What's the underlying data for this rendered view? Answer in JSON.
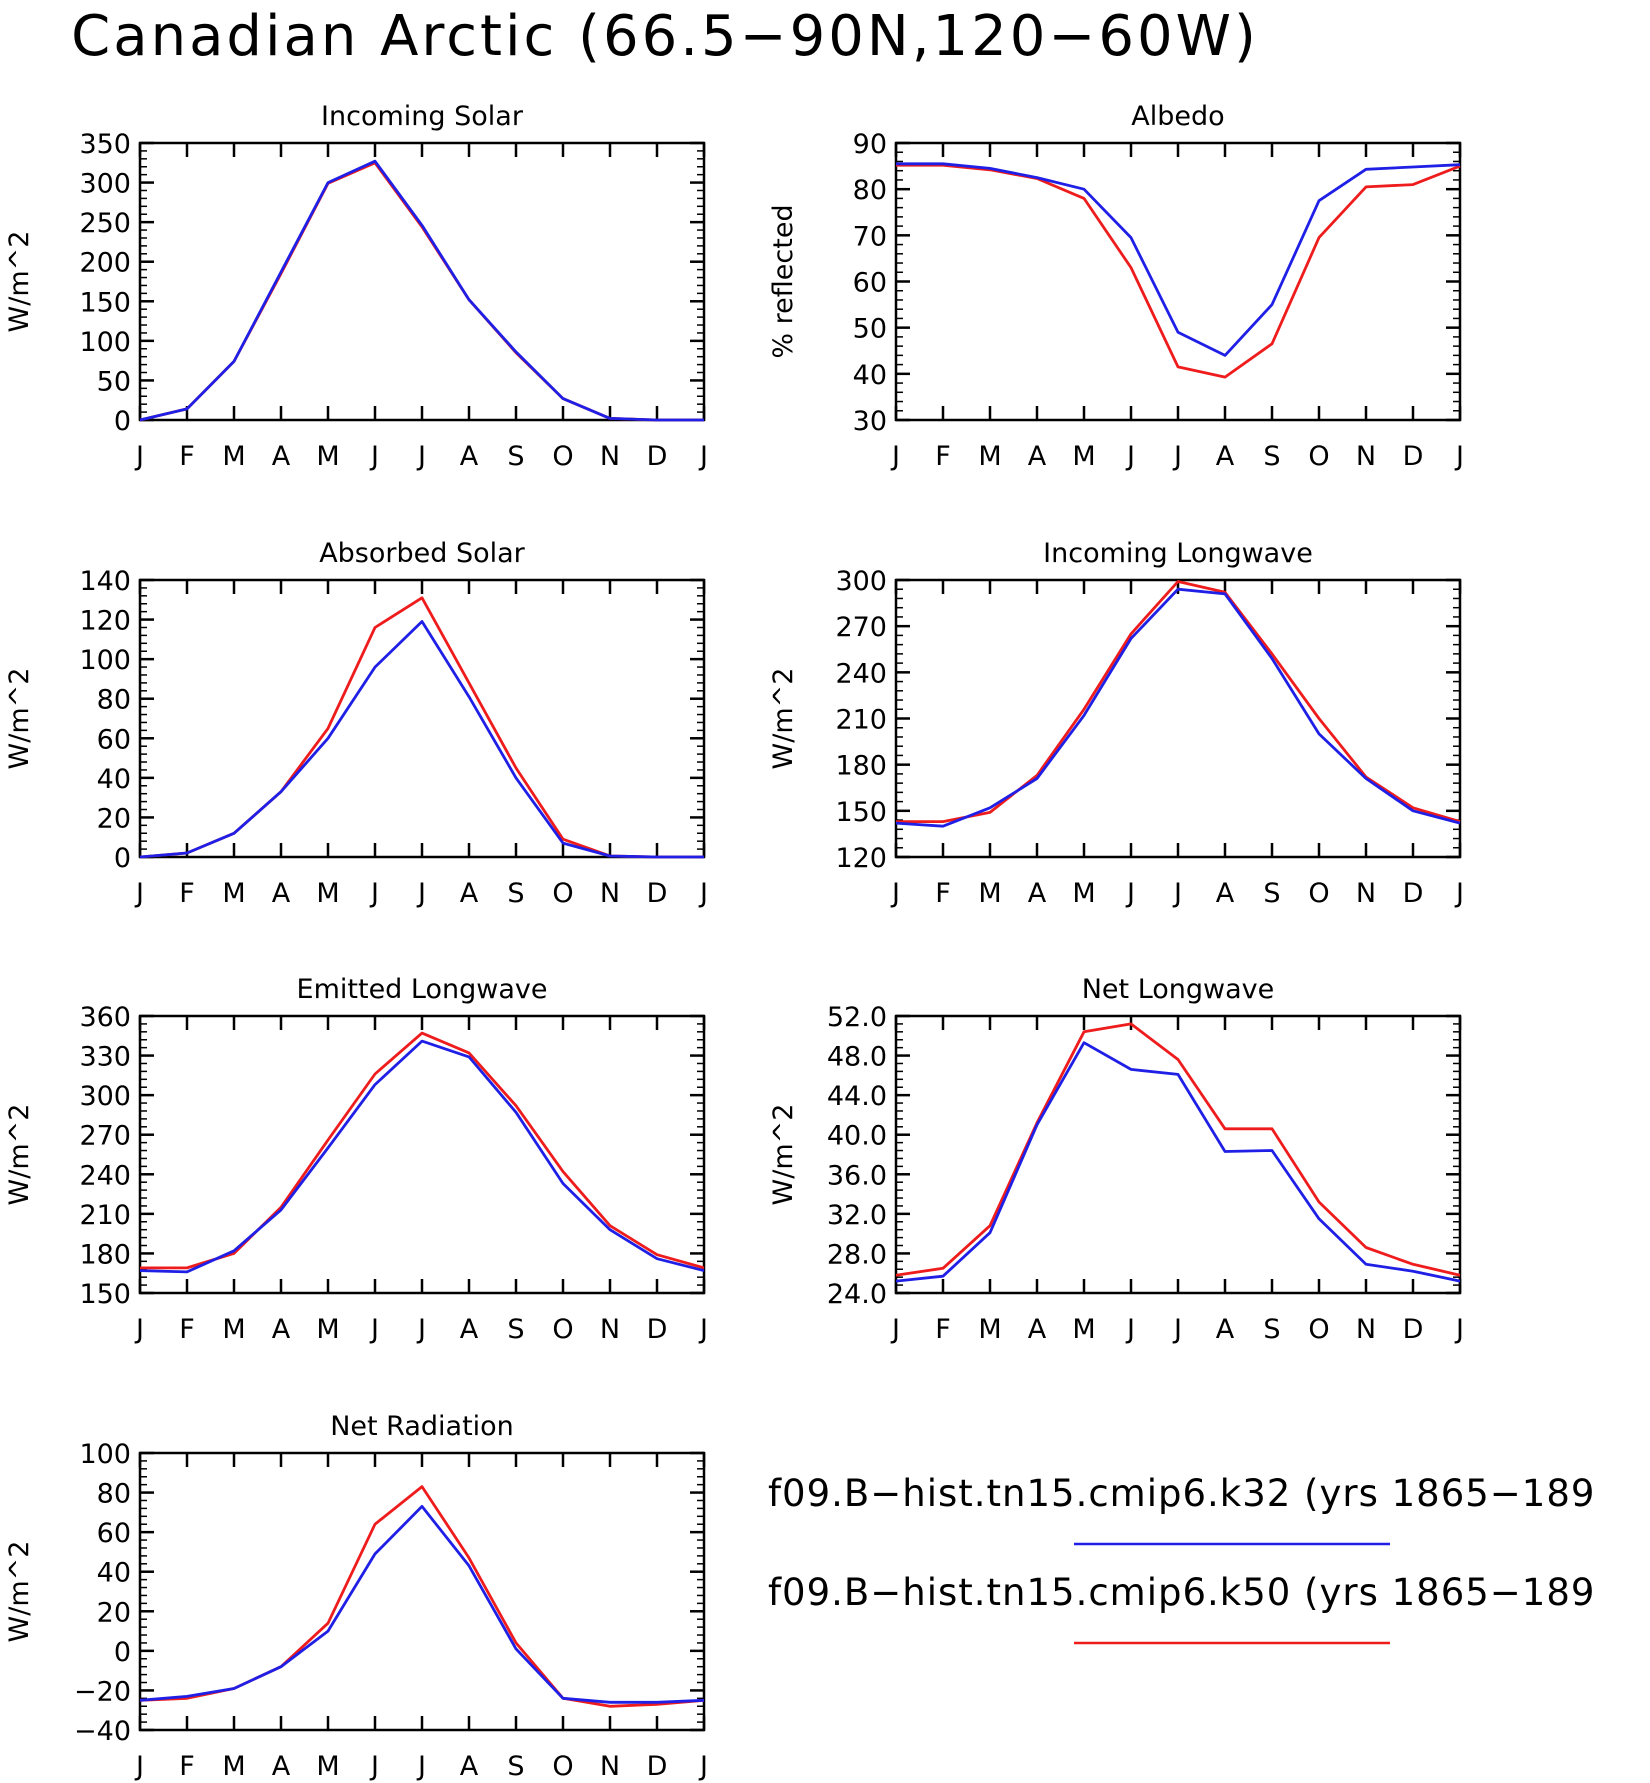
{
  "title": "Canadian Arctic (66.5−90N,120−60W)",
  "month_labels": [
    "J",
    "F",
    "M",
    "A",
    "M",
    "J",
    "J",
    "A",
    "S",
    "O",
    "N",
    "D",
    "J"
  ],
  "legend": [
    {
      "label": "f09.B−hist.tn15.cmip6.k32 (yrs 1865−189",
      "color": "#1f1fe6"
    },
    {
      "label": "f09.B−hist.tn15.cmip6.k50 (yrs 1865−189",
      "color": "#ee1c1c"
    }
  ],
  "chart_data": [
    {
      "type": "line",
      "title": "Incoming Solar",
      "ylabel": "W/m^2",
      "ylim": [
        0,
        350
      ],
      "yticks": [
        0,
        50,
        100,
        150,
        200,
        250,
        300,
        350
      ],
      "ytick_labels": [
        "0",
        "50",
        "100",
        "150",
        "200",
        "250",
        "300",
        "350"
      ],
      "series": [
        {
          "values": [
            0,
            14,
            74,
            185,
            299,
            325,
            244,
            152,
            85,
            27,
            2,
            0,
            0
          ],
          "color": "#ee1c1c"
        },
        {
          "values": [
            0,
            14,
            74,
            187,
            300,
            327,
            246,
            152,
            86,
            27,
            2,
            0,
            0
          ],
          "color": "#1f1fe6"
        }
      ]
    },
    {
      "type": "line",
      "title": "Albedo",
      "ylabel": "% reflected",
      "ylim": [
        30,
        90
      ],
      "yticks": [
        30,
        40,
        50,
        60,
        70,
        80,
        90
      ],
      "ytick_labels": [
        "30",
        "40",
        "50",
        "60",
        "70",
        "80",
        "90"
      ],
      "series": [
        {
          "values": [
            85.2,
            85.2,
            84.2,
            82.3,
            78.0,
            63.0,
            41.5,
            39.3,
            46.5,
            69.5,
            80.5,
            81.0,
            85.0
          ],
          "color": "#ee1c1c"
        },
        {
          "values": [
            85.5,
            85.5,
            84.5,
            82.5,
            80.0,
            69.5,
            49.0,
            44.0,
            55.0,
            77.5,
            84.3,
            84.8,
            85.3
          ],
          "color": "#1f1fe6"
        }
      ]
    },
    {
      "type": "line",
      "title": "Absorbed Solar",
      "ylabel": "W/m^2",
      "ylim": [
        0,
        140
      ],
      "yticks": [
        0,
        20,
        40,
        60,
        80,
        100,
        120,
        140
      ],
      "ytick_labels": [
        "0",
        "20",
        "40",
        "60",
        "80",
        "100",
        "120",
        "140"
      ],
      "series": [
        {
          "values": [
            0,
            2,
            12,
            33,
            65,
            116,
            131,
            88,
            45,
            9,
            0.5,
            0,
            0
          ],
          "color": "#ee1c1c"
        },
        {
          "values": [
            0,
            2,
            12,
            33,
            60,
            96,
            119,
            81,
            40,
            7,
            0.5,
            0,
            0
          ],
          "color": "#1f1fe6"
        }
      ]
    },
    {
      "type": "line",
      "title": "Incoming Longwave",
      "ylabel": "W/m^2",
      "ylim": [
        120,
        300
      ],
      "yticks": [
        120,
        150,
        180,
        210,
        240,
        270,
        300
      ],
      "ytick_labels": [
        "120",
        "150",
        "180",
        "210",
        "240",
        "270",
        "300"
      ],
      "series": [
        {
          "values": [
            143,
            143,
            149,
            173,
            216,
            265,
            299,
            292,
            252,
            210,
            172,
            152,
            143
          ],
          "color": "#ee1c1c"
        },
        {
          "values": [
            142,
            140,
            152,
            171,
            212,
            262,
            294,
            291,
            249,
            200,
            171,
            150,
            142
          ],
          "color": "#1f1fe6"
        }
      ]
    },
    {
      "type": "line",
      "title": "Emitted Longwave",
      "ylabel": "W/m^2",
      "ylim": [
        150,
        360
      ],
      "yticks": [
        150,
        180,
        210,
        240,
        270,
        300,
        330,
        360
      ],
      "ytick_labels": [
        "150",
        "180",
        "210",
        "240",
        "270",
        "300",
        "330",
        "360"
      ],
      "series": [
        {
          "values": [
            169,
            169,
            180,
            215,
            266,
            316,
            347,
            332,
            292,
            242,
            201,
            179,
            169
          ],
          "color": "#ee1c1c"
        },
        {
          "values": [
            167,
            166,
            182,
            213,
            260,
            308,
            341,
            329,
            287,
            233,
            198,
            176,
            167
          ],
          "color": "#1f1fe6"
        }
      ]
    },
    {
      "type": "line",
      "title": "Net Longwave",
      "ylabel": "W/m^2",
      "ylim": [
        24,
        52
      ],
      "yticks": [
        24,
        28,
        32,
        36,
        40,
        44,
        48,
        52
      ],
      "ytick_labels": [
        "24.0",
        "28.0",
        "32.0",
        "36.0",
        "40.0",
        "44.0",
        "48.0",
        "52.0"
      ],
      "series": [
        {
          "values": [
            25.8,
            26.5,
            30.8,
            41.2,
            50.4,
            51.2,
            47.6,
            40.6,
            40.6,
            33.2,
            28.6,
            26.9,
            25.8
          ],
          "color": "#ee1c1c"
        },
        {
          "values": [
            25.2,
            25.7,
            30.1,
            41.0,
            49.3,
            46.6,
            46.1,
            38.3,
            38.4,
            31.5,
            26.9,
            26.2,
            25.2
          ],
          "color": "#1f1fe6"
        }
      ]
    },
    {
      "type": "line",
      "title": "Net Radiation",
      "ylabel": "W/m^2",
      "ylim": [
        -40,
        100
      ],
      "yticks": [
        -40,
        -20,
        0,
        20,
        40,
        60,
        80,
        100
      ],
      "ytick_labels": [
        "−40",
        "−20",
        "0",
        "20",
        "40",
        "60",
        "80",
        "100"
      ],
      "series": [
        {
          "values": [
            -25,
            -24,
            -19,
            -8,
            14,
            64,
            83,
            47,
            4,
            -24,
            -28,
            -27,
            -25
          ],
          "color": "#ee1c1c"
        },
        {
          "values": [
            -25,
            -23,
            -19,
            -8,
            10,
            49,
            73,
            43,
            1,
            -24,
            -26,
            -26,
            -25
          ],
          "color": "#1f1fe6"
        }
      ]
    }
  ]
}
